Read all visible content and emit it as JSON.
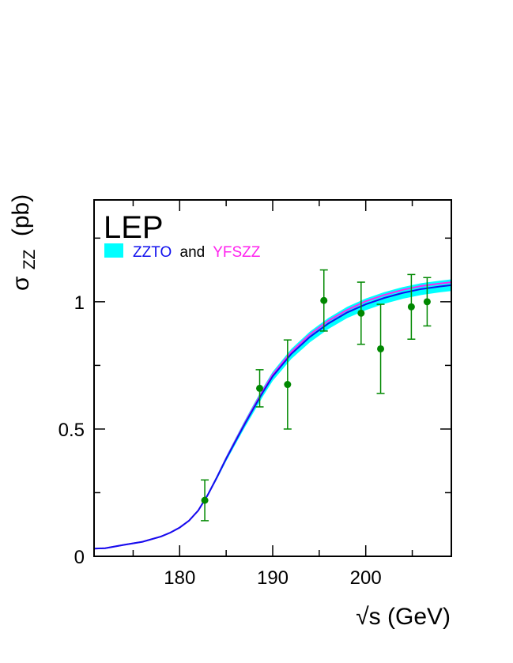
{
  "chart_data": {
    "type": "scatter",
    "experiment_label": "LEP",
    "legend": {
      "band_color": "#00ffff",
      "entries": [
        {
          "text": "ZZTO",
          "color": "#1010ee"
        },
        {
          "text": "and",
          "color": "#000000"
        },
        {
          "text": "YFSZZ",
          "color": "#ff22ee"
        }
      ]
    },
    "xlabel": "√s (GeV)",
    "ylabel_symbol": "σ",
    "ylabel_subscript": "ZZ",
    "ylabel_unit": "(pb)",
    "xlim": [
      170.8,
      209.2
    ],
    "ylim": [
      0,
      1.4
    ],
    "x_ticks": [
      {
        "value": 180,
        "label": "180"
      },
      {
        "value": 190,
        "label": "190"
      },
      {
        "value": 200,
        "label": "200"
      }
    ],
    "y_ticks": [
      {
        "value": 0,
        "label": "0"
      },
      {
        "value": 0.5,
        "label": "0.5"
      },
      {
        "value": 1,
        "label": "1"
      }
    ],
    "points_color": "#008800",
    "points": [
      {
        "x": 182.7,
        "y": 0.22,
        "err": 0.08
      },
      {
        "x": 188.6,
        "y": 0.66,
        "err": 0.073
      },
      {
        "x": 191.6,
        "y": 0.675,
        "err": 0.175
      },
      {
        "x": 195.5,
        "y": 1.005,
        "err": 0.12
      },
      {
        "x": 199.5,
        "y": 0.955,
        "err": 0.122
      },
      {
        "x": 201.6,
        "y": 0.815,
        "err": 0.175
      },
      {
        "x": 204.9,
        "y": 0.98,
        "err": 0.127
      },
      {
        "x": 206.6,
        "y": 1.0,
        "err": 0.095
      }
    ],
    "prediction_curves": [
      {
        "name": "ZZTO",
        "color": "#1010ee",
        "x": [
          170.8,
          172,
          174,
          176,
          178,
          179,
          180,
          181,
          182,
          183,
          184,
          185,
          186,
          187,
          188,
          189,
          190,
          192,
          194,
          196,
          198,
          200,
          202,
          204,
          206,
          208,
          209.2
        ],
        "y": [
          0.03,
          0.032,
          0.045,
          0.057,
          0.078,
          0.093,
          0.113,
          0.14,
          0.18,
          0.24,
          0.31,
          0.383,
          0.452,
          0.52,
          0.585,
          0.648,
          0.707,
          0.795,
          0.862,
          0.915,
          0.958,
          0.99,
          1.015,
          1.035,
          1.05,
          1.06,
          1.065
        ]
      },
      {
        "name": "YFSZZ",
        "color": "#ff22ee",
        "x": [
          170.8,
          172,
          174,
          176,
          178,
          179,
          180,
          181,
          182,
          183,
          184,
          185,
          186,
          187,
          188,
          189,
          190,
          192,
          194,
          196,
          198,
          200,
          202,
          204,
          206,
          208,
          209.2
        ],
        "y": [
          0.03,
          0.032,
          0.045,
          0.057,
          0.078,
          0.093,
          0.113,
          0.14,
          0.18,
          0.24,
          0.31,
          0.385,
          0.455,
          0.524,
          0.59,
          0.654,
          0.714,
          0.803,
          0.872,
          0.926,
          0.968,
          1.002,
          1.027,
          1.047,
          1.062,
          1.072,
          1.077
        ]
      }
    ],
    "band_x": [
      182,
      183,
      184,
      185,
      186,
      187,
      188,
      189,
      190,
      192,
      194,
      196,
      198,
      200,
      202,
      204,
      206,
      208,
      209.2
    ],
    "band_halfwidth": [
      0.004,
      0.006,
      0.008,
      0.01,
      0.012,
      0.014,
      0.016,
      0.017,
      0.018,
      0.02,
      0.021,
      0.022,
      0.022,
      0.023,
      0.023,
      0.023,
      0.023,
      0.023,
      0.023
    ],
    "grid": false
  }
}
